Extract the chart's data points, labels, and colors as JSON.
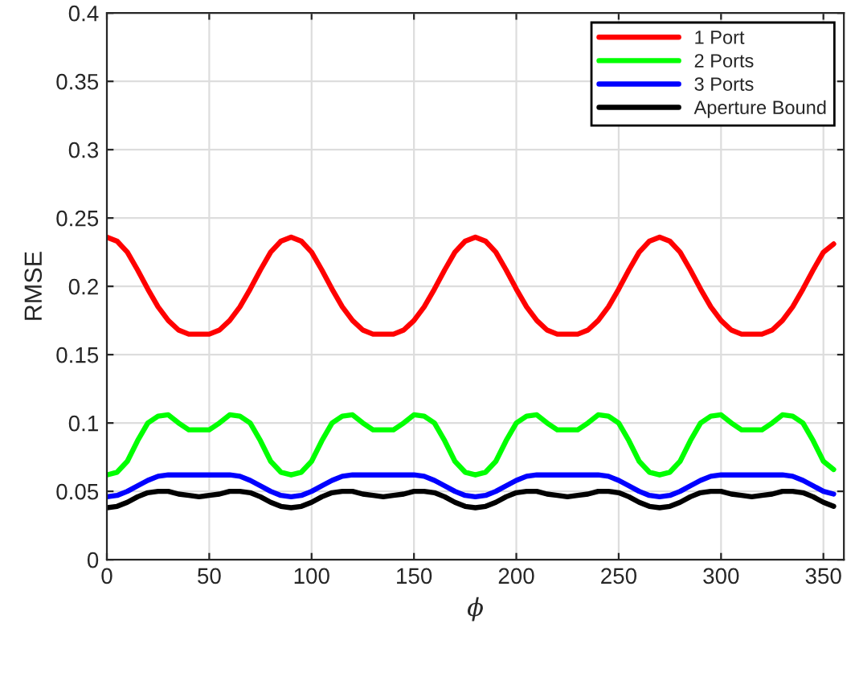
{
  "chart_data": {
    "type": "line",
    "xlabel": "ϕ",
    "ylabel": "RMSE",
    "x": [
      0,
      5,
      10,
      15,
      20,
      25,
      30,
      35,
      40,
      45,
      50,
      55,
      60,
      65,
      70,
      75,
      80,
      85,
      90,
      95,
      100,
      105,
      110,
      115,
      120,
      125,
      130,
      135,
      140,
      145,
      150,
      155,
      160,
      165,
      170,
      175,
      180,
      185,
      190,
      195,
      200,
      205,
      210,
      215,
      220,
      225,
      230,
      235,
      240,
      245,
      250,
      255,
      260,
      265,
      270,
      275,
      280,
      285,
      290,
      295,
      300,
      305,
      310,
      315,
      320,
      325,
      330,
      335,
      340,
      345,
      350,
      355
    ],
    "series": [
      {
        "name": "1 Port",
        "color": "#ff0000",
        "values": [
          0.236,
          0.233,
          0.225,
          0.212,
          0.198,
          0.185,
          0.175,
          0.168,
          0.165,
          0.165,
          0.165,
          0.168,
          0.175,
          0.185,
          0.198,
          0.212,
          0.225,
          0.233,
          0.236,
          0.233,
          0.225,
          0.212,
          0.198,
          0.185,
          0.175,
          0.168,
          0.165,
          0.165,
          0.165,
          0.168,
          0.175,
          0.185,
          0.198,
          0.212,
          0.225,
          0.233,
          0.236,
          0.233,
          0.225,
          0.212,
          0.198,
          0.185,
          0.175,
          0.168,
          0.165,
          0.165,
          0.165,
          0.168,
          0.175,
          0.185,
          0.198,
          0.212,
          0.225,
          0.233,
          0.236,
          0.233,
          0.225,
          0.212,
          0.198,
          0.185,
          0.175,
          0.168,
          0.165,
          0.165,
          0.165,
          0.168,
          0.175,
          0.185,
          0.198,
          0.212,
          0.225,
          0.231
        ]
      },
      {
        "name": "2 Ports",
        "color": "#00ff00",
        "values": [
          0.062,
          0.064,
          0.072,
          0.087,
          0.1,
          0.105,
          0.106,
          0.1,
          0.095,
          0.095,
          0.095,
          0.1,
          0.106,
          0.105,
          0.1,
          0.087,
          0.072,
          0.064,
          0.062,
          0.064,
          0.072,
          0.087,
          0.1,
          0.105,
          0.106,
          0.1,
          0.095,
          0.095,
          0.095,
          0.1,
          0.106,
          0.105,
          0.1,
          0.087,
          0.072,
          0.064,
          0.062,
          0.064,
          0.072,
          0.087,
          0.1,
          0.105,
          0.106,
          0.1,
          0.095,
          0.095,
          0.095,
          0.1,
          0.106,
          0.105,
          0.1,
          0.087,
          0.072,
          0.064,
          0.062,
          0.064,
          0.072,
          0.087,
          0.1,
          0.105,
          0.106,
          0.1,
          0.095,
          0.095,
          0.095,
          0.1,
          0.106,
          0.105,
          0.1,
          0.087,
          0.072,
          0.066
        ]
      },
      {
        "name": "3 Ports",
        "color": "#0000ff",
        "values": [
          0.046,
          0.047,
          0.05,
          0.054,
          0.058,
          0.061,
          0.062,
          0.062,
          0.062,
          0.062,
          0.062,
          0.062,
          0.062,
          0.061,
          0.058,
          0.054,
          0.05,
          0.047,
          0.046,
          0.047,
          0.05,
          0.054,
          0.058,
          0.061,
          0.062,
          0.062,
          0.062,
          0.062,
          0.062,
          0.062,
          0.062,
          0.061,
          0.058,
          0.054,
          0.05,
          0.047,
          0.046,
          0.047,
          0.05,
          0.054,
          0.058,
          0.061,
          0.062,
          0.062,
          0.062,
          0.062,
          0.062,
          0.062,
          0.062,
          0.061,
          0.058,
          0.054,
          0.05,
          0.047,
          0.046,
          0.047,
          0.05,
          0.054,
          0.058,
          0.061,
          0.062,
          0.062,
          0.062,
          0.062,
          0.062,
          0.062,
          0.062,
          0.061,
          0.058,
          0.054,
          0.05,
          0.048
        ]
      },
      {
        "name": "Aperture Bound",
        "color": "#000000",
        "values": [
          0.038,
          0.039,
          0.042,
          0.046,
          0.049,
          0.05,
          0.05,
          0.048,
          0.047,
          0.046,
          0.047,
          0.048,
          0.05,
          0.05,
          0.049,
          0.046,
          0.042,
          0.039,
          0.038,
          0.039,
          0.042,
          0.046,
          0.049,
          0.05,
          0.05,
          0.048,
          0.047,
          0.046,
          0.047,
          0.048,
          0.05,
          0.05,
          0.049,
          0.046,
          0.042,
          0.039,
          0.038,
          0.039,
          0.042,
          0.046,
          0.049,
          0.05,
          0.05,
          0.048,
          0.047,
          0.046,
          0.047,
          0.048,
          0.05,
          0.05,
          0.049,
          0.046,
          0.042,
          0.039,
          0.038,
          0.039,
          0.042,
          0.046,
          0.049,
          0.05,
          0.05,
          0.048,
          0.047,
          0.046,
          0.047,
          0.048,
          0.05,
          0.05,
          0.049,
          0.046,
          0.042,
          0.039
        ]
      }
    ],
    "xlim": [
      0,
      360
    ],
    "xticks": [
      0,
      50,
      100,
      150,
      200,
      250,
      300,
      350
    ],
    "ylim": [
      0,
      0.4
    ],
    "yticks": [
      0,
      0.05,
      0.1,
      0.15,
      0.2,
      0.25,
      0.3,
      0.35,
      0.4
    ],
    "grid": true,
    "legend": "top right",
    "line_style": "solid",
    "marker": "none"
  }
}
